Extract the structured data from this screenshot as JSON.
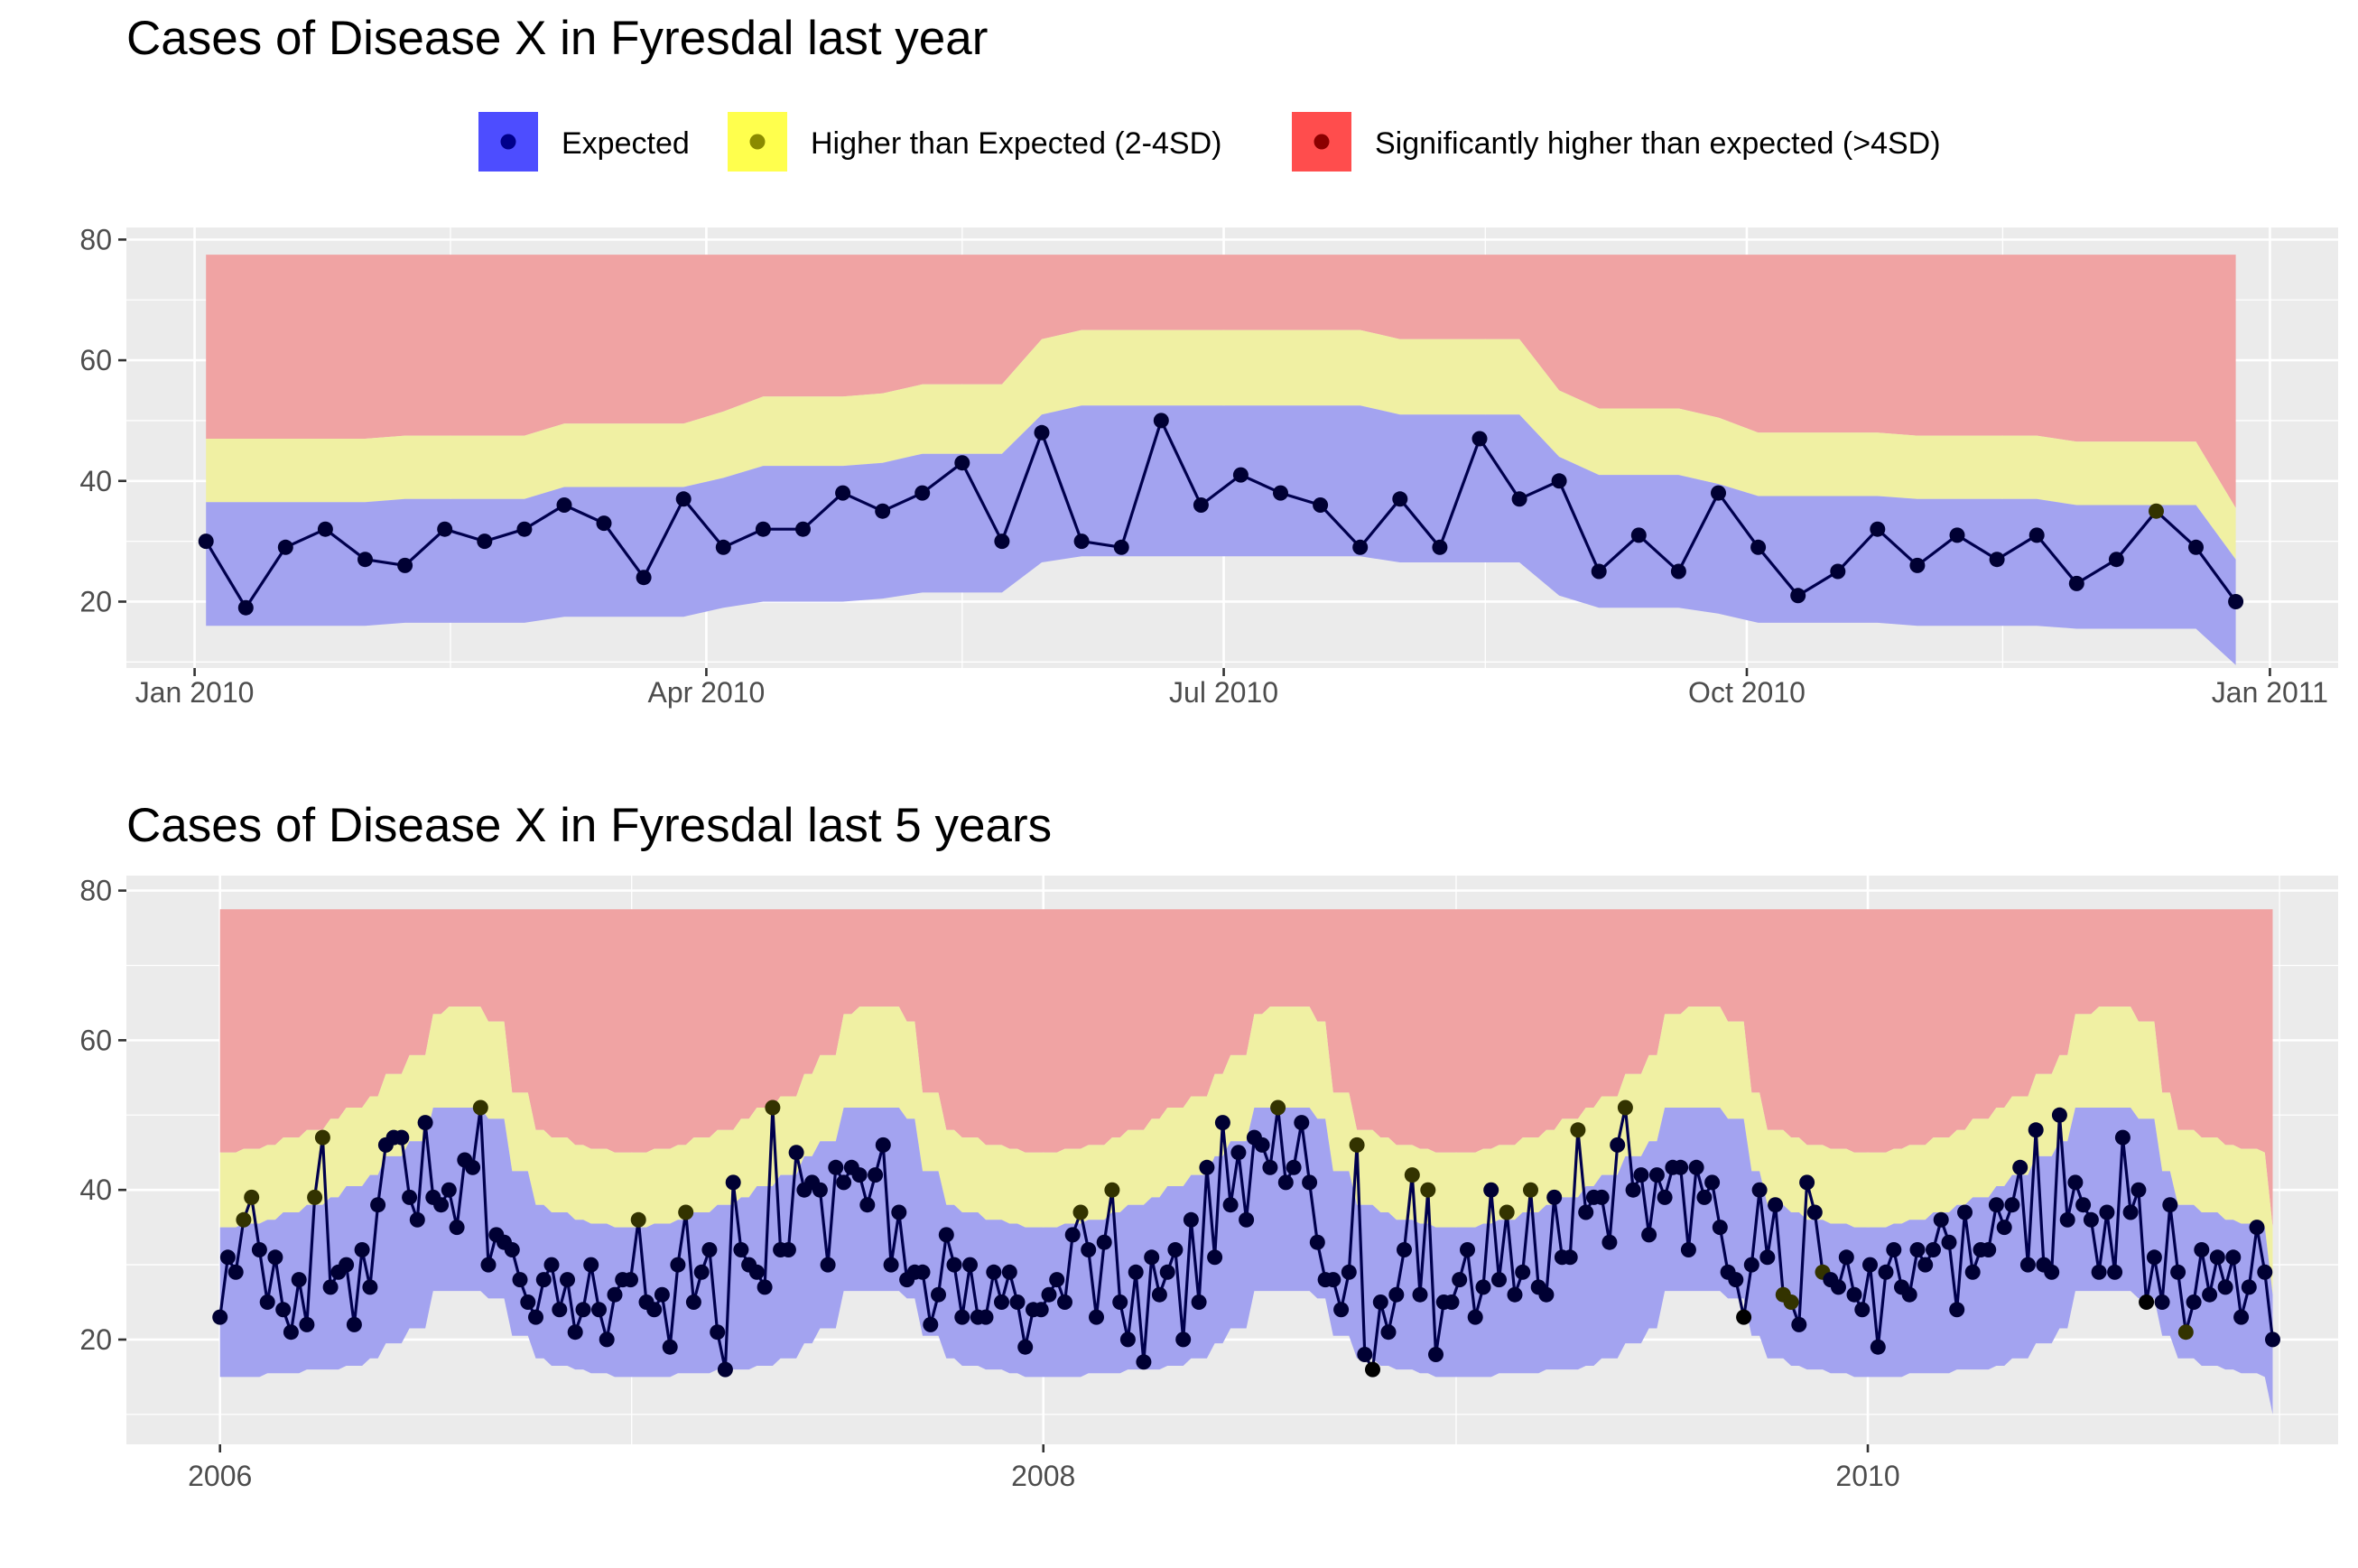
{
  "legend": {
    "items": [
      {
        "label": "Expected",
        "fill": "#4d4dff",
        "dot": "#00008b"
      },
      {
        "label": "Higher than Expected (2-4SD)",
        "fill": "#ffff4d",
        "dot": "#8b8b00"
      },
      {
        "label": "Significantly higher than expected (>4SD)",
        "fill": "#ff4d4d",
        "dot": "#8b0000"
      }
    ]
  },
  "colors": {
    "expected_band": "#a3a3f0",
    "higher_band": "#f0f0a3",
    "significant_band": "#f0a3a3",
    "line": "#00004d",
    "dot_expected": "#000033",
    "dot_higher": "#333300"
  },
  "chart_data": [
    {
      "type": "area",
      "title": "Cases of Disease X in Fyresdal last year",
      "xlabel": "",
      "ylabel": "",
      "x_unit": "date",
      "x_range": [
        "2009-12-20",
        "2011-01-13"
      ],
      "ylim": [
        9,
        82
      ],
      "yticks": [
        20,
        40,
        60,
        80
      ],
      "xtick_labels": [
        {
          "date": "2010-01-01",
          "label": "Jan 2010"
        },
        {
          "date": "2010-04-01",
          "label": "Apr 2010"
        },
        {
          "date": "2010-07-01",
          "label": "Jul 2010"
        },
        {
          "date": "2010-10-01",
          "label": "Oct 2010"
        },
        {
          "date": "2011-01-01",
          "label": "Jan 2011"
        }
      ],
      "minor_grid_dates": [
        "2010-02-15",
        "2010-05-16",
        "2010-08-16",
        "2010-11-15"
      ],
      "grid": true,
      "legend_position": "top",
      "x_start": "2010-01-03",
      "x_step_days": 7,
      "values": [
        30,
        19,
        29,
        32,
        27,
        26,
        32,
        30,
        32,
        36,
        33,
        24,
        37,
        29,
        32,
        32,
        38,
        35,
        38,
        43,
        30,
        48,
        30,
        29,
        50,
        36,
        41,
        38,
        36,
        29,
        37,
        29,
        47,
        37,
        40,
        25,
        31,
        25,
        38,
        29,
        21,
        25,
        32,
        26,
        31,
        27,
        31,
        23,
        27,
        35,
        29,
        20
      ],
      "flag": [
        0,
        0,
        0,
        0,
        0,
        0,
        0,
        0,
        0,
        0,
        0,
        0,
        0,
        0,
        0,
        0,
        0,
        0,
        0,
        0,
        0,
        0,
        0,
        0,
        0,
        0,
        0,
        0,
        0,
        0,
        0,
        0,
        0,
        0,
        0,
        0,
        0,
        0,
        0,
        0,
        0,
        0,
        0,
        0,
        0,
        0,
        0,
        0,
        0,
        1,
        0,
        0
      ],
      "band_lower": [
        16,
        16,
        16,
        16,
        16,
        16.5,
        16.5,
        16.5,
        16.5,
        17.5,
        17.5,
        17.5,
        17.5,
        19,
        20,
        20,
        20,
        20.5,
        21.5,
        21.5,
        21.5,
        26.5,
        27.5,
        27.5,
        27.5,
        27.5,
        27.5,
        27.5,
        27.5,
        27.5,
        26.5,
        26.5,
        26.5,
        26.5,
        21,
        19,
        19,
        19,
        18,
        16.5,
        16.5,
        16.5,
        16.5,
        16,
        16,
        16,
        16,
        15.5,
        15.5,
        15.5,
        15.5,
        9.5
      ],
      "band_expected_upper": [
        36.5,
        36.5,
        36.5,
        36.5,
        36.5,
        37,
        37,
        37,
        37,
        39,
        39,
        39,
        39,
        40.5,
        42.5,
        42.5,
        42.5,
        43,
        44.5,
        44.5,
        44.5,
        51,
        52.5,
        52.5,
        52.5,
        52.5,
        52.5,
        52.5,
        52.5,
        52.5,
        51,
        51,
        51,
        51,
        44,
        41,
        41,
        41,
        39.5,
        37.5,
        37.5,
        37.5,
        37.5,
        37,
        37,
        37,
        37,
        36,
        36,
        36,
        36,
        27
      ],
      "band_higher_upper": [
        47,
        47,
        47,
        47,
        47,
        47.5,
        47.5,
        47.5,
        47.5,
        49.5,
        49.5,
        49.5,
        49.5,
        51.5,
        54,
        54,
        54,
        54.5,
        56,
        56,
        56,
        63.5,
        65,
        65,
        65,
        65,
        65,
        65,
        65,
        65,
        63.5,
        63.5,
        63.5,
        63.5,
        55,
        52,
        52,
        52,
        50.5,
        48,
        48,
        48,
        48,
        47.5,
        47.5,
        47.5,
        47.5,
        46.5,
        46.5,
        46.5,
        46.5,
        35.5
      ],
      "band_top": 77.5
    },
    {
      "type": "area",
      "title": "Cases of Disease X in Fyresdal last 5 years",
      "xlabel": "",
      "ylabel": "",
      "x_unit": "date",
      "x_range": [
        "2005-10-10",
        "2011-02-22"
      ],
      "ylim": [
        6,
        82
      ],
      "yticks": [
        20,
        40,
        60,
        80
      ],
      "xtick_labels": [
        {
          "date": "2006-01-01",
          "label": "2006"
        },
        {
          "date": "2008-01-01",
          "label": "2008"
        },
        {
          "date": "2010-01-01",
          "label": "2010"
        }
      ],
      "minor_grid_dates": [
        "2007-01-01",
        "2009-01-01",
        "2011-01-01"
      ],
      "grid": true,
      "x_start": "2006-01-01",
      "x_end": "2010-12-26",
      "values": [
        23,
        31,
        29,
        36,
        39,
        32,
        25,
        31,
        24,
        21,
        28,
        22,
        39,
        47,
        27,
        29,
        30,
        22,
        32,
        27,
        38,
        46,
        47,
        47,
        39,
        36,
        49,
        39,
        38,
        40,
        35,
        44,
        43,
        51,
        30,
        34,
        33,
        32,
        28,
        25,
        23,
        28,
        30,
        24,
        28,
        21,
        24,
        30,
        24,
        20,
        26,
        28,
        28,
        36,
        25,
        24,
        26,
        19,
        30,
        37,
        25,
        29,
        32,
        21,
        16,
        41,
        32,
        30,
        29,
        27,
        51,
        32,
        32,
        45,
        40,
        41,
        40,
        30,
        43,
        41,
        43,
        42,
        38,
        42,
        46,
        30,
        37,
        28,
        29,
        29,
        22,
        26,
        34,
        30,
        23,
        30,
        23,
        23,
        29,
        25,
        29,
        25,
        19,
        24,
        24,
        26,
        28,
        25,
        34,
        37,
        32,
        23,
        33,
        40,
        25,
        20,
        29,
        17,
        31,
        26,
        29,
        32,
        20,
        36,
        25,
        43,
        31,
        49,
        38,
        45,
        36,
        47,
        46,
        43,
        51,
        41,
        43,
        49,
        41,
        33,
        28,
        28,
        24,
        29,
        46,
        18,
        16,
        25,
        21,
        26,
        32,
        42,
        26,
        40,
        18,
        25,
        25,
        28,
        32,
        23,
        27,
        40,
        28,
        37,
        26,
        29,
        40,
        27,
        26,
        39,
        31,
        31,
        48,
        37,
        39,
        39,
        33,
        46,
        51,
        40,
        42,
        34,
        42,
        39,
        43,
        43,
        32,
        43,
        39,
        41,
        35,
        29,
        28,
        23,
        30,
        40,
        31,
        38,
        26,
        25,
        22,
        41,
        37,
        29,
        28,
        27,
        31,
        26,
        24,
        30,
        19,
        29,
        32,
        27,
        26,
        32,
        30,
        32,
        36,
        33,
        24,
        37,
        29,
        32,
        32,
        38,
        35,
        38,
        43,
        30,
        48,
        30,
        29,
        50,
        36,
        41,
        38,
        36,
        29,
        37,
        29,
        47,
        37,
        40,
        25,
        31,
        25,
        38,
        29,
        21,
        25,
        32,
        26,
        31,
        27,
        31,
        23,
        27,
        35,
        29,
        20
      ],
      "flag_indices": [
        3,
        4,
        12,
        13,
        33,
        53,
        59,
        70,
        109,
        113,
        134,
        144,
        151,
        153,
        163,
        166,
        172,
        178,
        198,
        199,
        203,
        249
      ],
      "band_top": 77.5,
      "band_profile_lower": [
        15,
        15,
        15.5,
        15.5,
        16,
        16,
        16.5,
        17.5,
        19.5,
        21.5,
        26.5,
        26.5,
        26.5,
        25.5,
        20.5,
        17.5,
        16.5,
        16,
        15.5,
        15
      ],
      "band_profile_expected_upper": [
        35,
        35.5,
        36,
        37,
        38,
        39,
        40.5,
        42,
        44.5,
        46.5,
        51,
        51,
        51,
        49.5,
        42.5,
        38,
        37,
        36,
        35.5,
        35
      ],
      "band_profile_higher_upper": [
        45,
        45.5,
        46,
        47,
        48,
        49.5,
        51,
        52.5,
        55.5,
        58,
        63.5,
        64.5,
        64.5,
        62.5,
        53,
        48,
        47,
        46,
        45.5,
        45
      ]
    }
  ]
}
